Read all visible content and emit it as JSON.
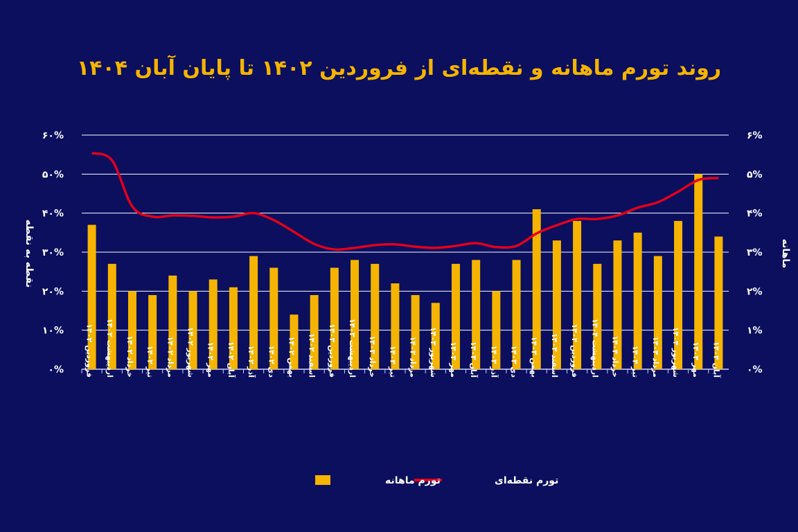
{
  "chart_data": {
    "type": "bar+line",
    "title": "روند تورم ماهانه و نقطه‌ای از فروردین ۱۴۰۲ تا پایان آبان ۱۴۰۴",
    "ylabel_left": "نقطه به نقطه",
    "ylabel_right": "ماهانه",
    "ylim_left": [
      0,
      60
    ],
    "ylim_right": [
      0,
      6
    ],
    "yticks_left": [
      "۰%",
      "۱۰%",
      "۲۰%",
      "۳۰%",
      "۴۰%",
      "۵۰%",
      "۶۰%"
    ],
    "yticks_right": [
      "۰%",
      "۱%",
      "۲%",
      "۳%",
      "۴%",
      "۵%",
      "۶%"
    ],
    "grid": true,
    "legend_position": "bottom",
    "colors": {
      "background": "#0b0f5e",
      "bars": "#f5b400",
      "line": "#e3001b",
      "title": "#f5b400",
      "text": "#ffffff"
    },
    "categories": [
      "فروردین ۱۴۰۲",
      "اردیبهشت ۱۴۰۲",
      "خرداد ۱۴۰۲",
      "تیر ۱۴۰۲",
      "مرداد ۱۴۰۲",
      "شهریور ۱۴۰۲",
      "مهر ۱۴۰۲",
      "آبان ۱۴۰۲",
      "آذر ۱۴۰۲",
      "دی ۱۴۰۲",
      "بهمن ۱۴۰۲",
      "اسفند ۱۴۰۲",
      "فروردین ۱۴۰۳",
      "اردیبهشت ۱۴۰۳",
      "خرداد ۱۴۰۳",
      "تیر ۱۴۰۳",
      "مرداد ۱۴۰۳",
      "شهریور ۱۴۰۳",
      "مهر ۱۴۰۳",
      "آبان ۱۴۰۳",
      "آذر ۱۴۰۳",
      "دی ۱۴۰۳",
      "بهمن ۱۴۰۳",
      "اسفند ۱۴۰۳",
      "فروردین ۱۴۰۴",
      "اردیبهشت ۱۴۰۴",
      "خرداد ۱۴۰۴",
      "تیر ۱۴۰۴",
      "مرداد ۱۴۰۴",
      "شهریور ۱۴۰۴",
      "مهر ۱۴۰۴",
      "آبان ۱۴۰۴"
    ],
    "series": [
      {
        "name": "تورم ماهانه",
        "type": "bar",
        "axis": "right",
        "values": [
          3.7,
          2.7,
          2.0,
          1.9,
          2.4,
          2.0,
          2.3,
          2.1,
          2.9,
          2.6,
          1.4,
          1.9,
          2.6,
          2.8,
          2.7,
          2.2,
          1.9,
          1.7,
          2.7,
          2.8,
          2.0,
          2.8,
          4.1,
          3.3,
          3.8,
          2.7,
          3.3,
          3.5,
          2.9,
          3.8,
          5.0,
          3.4
        ]
      },
      {
        "name": "تورم نقطه‌ای",
        "type": "line",
        "axis": "left",
        "values": [
          55.4,
          53.5,
          41.7,
          39.1,
          39.4,
          39.3,
          38.9,
          39.1,
          40.0,
          38.2,
          35.2,
          32.1,
          30.7,
          31.1,
          31.8,
          32.0,
          31.4,
          31.1,
          31.6,
          32.3,
          31.3,
          31.6,
          34.8,
          36.9,
          38.5,
          38.5,
          39.4,
          41.4,
          42.8,
          45.5,
          48.5,
          49.0
        ]
      }
    ]
  }
}
